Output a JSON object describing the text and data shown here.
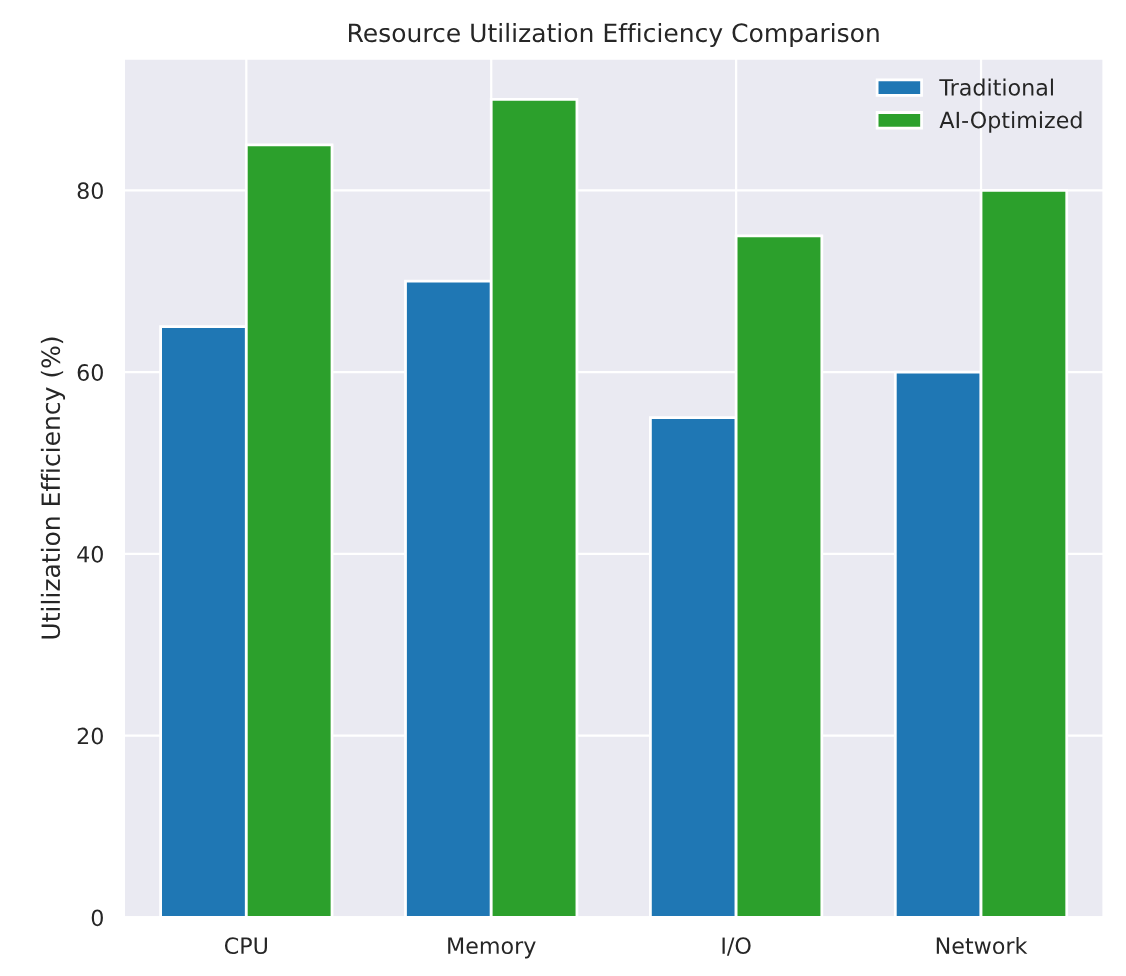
{
  "chart_data": {
    "type": "bar",
    "title": "Resource Utilization Efficiency Comparison",
    "ylabel": "Utilization Efficiency (%)",
    "categories": [
      "CPU",
      "Memory",
      "I/O",
      "Network"
    ],
    "series": [
      {
        "name": "Traditional",
        "color": "#1f77b4",
        "values": [
          65,
          70,
          55,
          60
        ]
      },
      {
        "name": "AI-Optimized",
        "color": "#2ca02c",
        "values": [
          85,
          90,
          75,
          80
        ]
      }
    ],
    "ylim": [
      0,
      94.5
    ],
    "yticks": [
      0,
      20,
      40,
      60,
      80
    ],
    "grid": true,
    "legend": "top right"
  }
}
